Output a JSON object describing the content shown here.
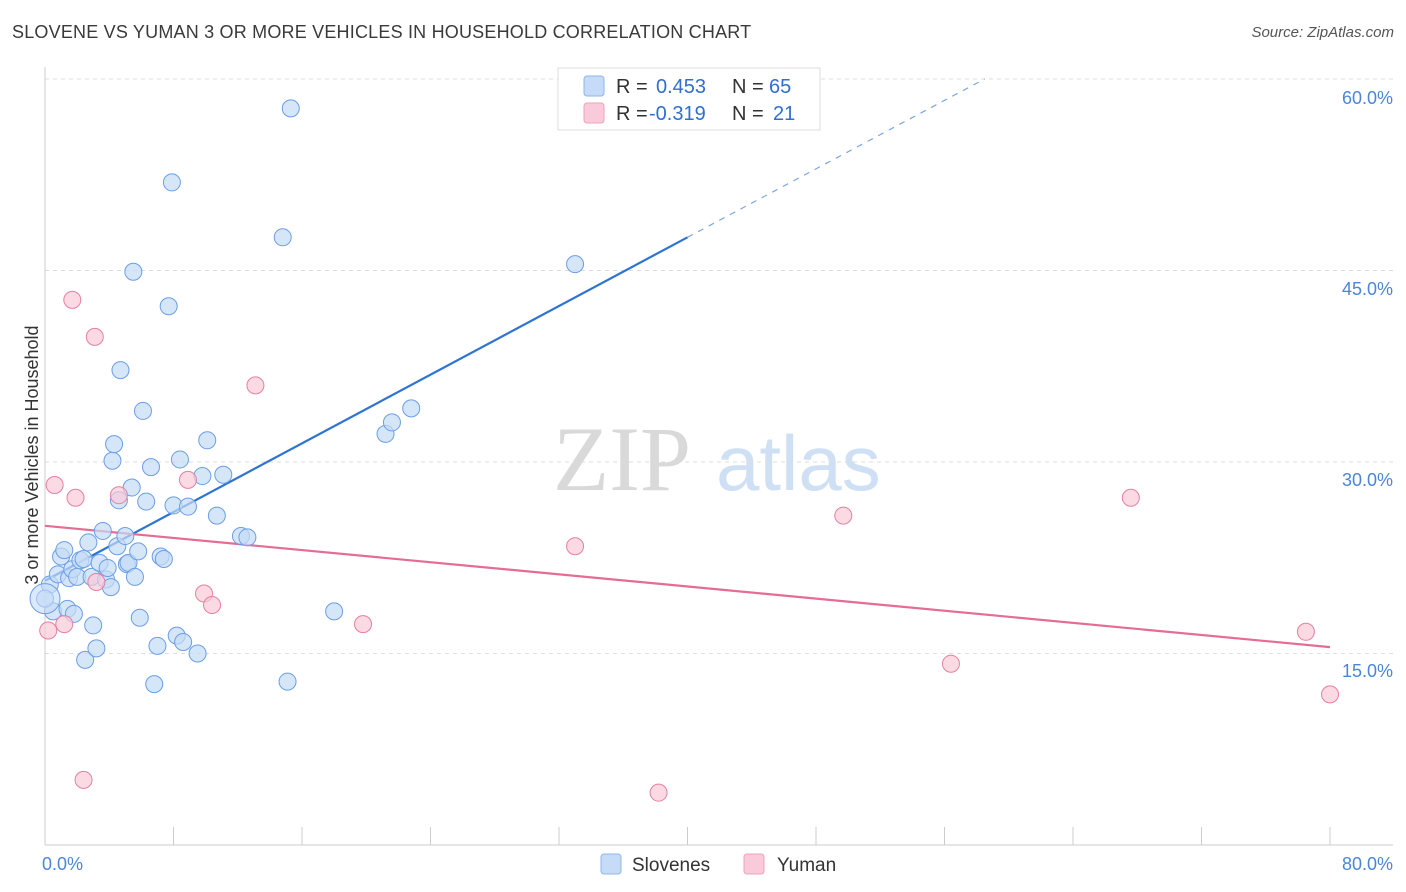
{
  "title": "SLOVENE VS YUMAN 3 OR MORE VEHICLES IN HOUSEHOLD CORRELATION CHART",
  "source": "Source: ZipAtlas.com",
  "watermark": {
    "zip": "ZIP",
    "atlas": "atlas"
  },
  "legend": [
    {
      "r_label": "R =",
      "r_value": "0.453",
      "n_label": "N =",
      "n_value": "65",
      "color": "#a9c8f3"
    },
    {
      "r_label": "R =",
      "r_value": "-0.319",
      "n_label": "N =",
      "n_value": "21",
      "color": "#f6b8cb"
    }
  ],
  "bottom_legend": [
    "Slovenes",
    "Yuman"
  ],
  "chart_data": {
    "type": "scatter",
    "title": "SLOVENE VS YUMAN 3 OR MORE VEHICLES IN HOUSEHOLD CORRELATION CHART",
    "xlabel": "",
    "ylabel": "3 or more Vehicles in Household",
    "xlim": [
      0,
      80
    ],
    "ylim": [
      0,
      60
    ],
    "x_tick_labels": [
      "0.0%",
      "80.0%"
    ],
    "y_tick_labels": [
      "15.0%",
      "30.0%",
      "45.0%",
      "60.0%"
    ],
    "y_ticks": [
      15,
      30,
      45,
      60
    ],
    "grid": "horizontal dashed",
    "series": [
      {
        "name": "Slovenes",
        "color": "#6a9ee6",
        "fill": "#c5dbf7",
        "r": 0.453,
        "n": 65,
        "trend": {
          "x0": 0,
          "y0": 20.7,
          "x1": 40,
          "y1": 47.6,
          "dash_x_end": 58.5,
          "dash_y_end": 60.0
        },
        "points": [
          [
            0.3,
            20.4
          ],
          [
            0.5,
            18.3
          ],
          [
            0.8,
            21.2
          ],
          [
            1.0,
            22.6
          ],
          [
            1.2,
            23.1
          ],
          [
            1.4,
            18.5
          ],
          [
            1.5,
            20.9
          ],
          [
            1.7,
            21.6
          ],
          [
            1.8,
            18.1
          ],
          [
            2.0,
            21.0
          ],
          [
            2.2,
            22.3
          ],
          [
            2.4,
            22.4
          ],
          [
            2.5,
            14.5
          ],
          [
            2.7,
            23.7
          ],
          [
            2.9,
            21.0
          ],
          [
            3.0,
            17.2
          ],
          [
            3.2,
            15.4
          ],
          [
            3.4,
            22.1
          ],
          [
            3.6,
            24.6
          ],
          [
            3.8,
            20.8
          ],
          [
            3.9,
            21.7
          ],
          [
            4.1,
            20.2
          ],
          [
            4.2,
            30.1
          ],
          [
            4.3,
            31.4
          ],
          [
            4.5,
            23.4
          ],
          [
            4.6,
            27.0
          ],
          [
            4.7,
            37.2
          ],
          [
            5.0,
            24.2
          ],
          [
            5.1,
            22.0
          ],
          [
            5.2,
            22.1
          ],
          [
            5.4,
            28.0
          ],
          [
            5.5,
            44.9
          ],
          [
            5.6,
            21.0
          ],
          [
            5.8,
            23.0
          ],
          [
            5.9,
            17.8
          ],
          [
            6.1,
            34.0
          ],
          [
            6.3,
            26.9
          ],
          [
            6.6,
            29.6
          ],
          [
            6.8,
            12.6
          ],
          [
            7.0,
            15.6
          ],
          [
            7.2,
            22.6
          ],
          [
            7.4,
            22.4
          ],
          [
            7.7,
            42.2
          ],
          [
            7.9,
            51.9
          ],
          [
            8.0,
            26.6
          ],
          [
            8.2,
            16.4
          ],
          [
            8.4,
            30.2
          ],
          [
            8.6,
            15.9
          ],
          [
            8.9,
            26.5
          ],
          [
            9.5,
            15.0
          ],
          [
            9.8,
            28.9
          ],
          [
            10.1,
            31.7
          ],
          [
            10.7,
            25.8
          ],
          [
            11.1,
            29.0
          ],
          [
            12.2,
            24.2
          ],
          [
            12.6,
            24.1
          ],
          [
            14.8,
            47.6
          ],
          [
            15.1,
            12.8
          ],
          [
            15.3,
            57.7
          ],
          [
            18.0,
            18.3
          ],
          [
            21.2,
            32.2
          ],
          [
            21.6,
            33.1
          ],
          [
            22.8,
            34.2
          ],
          [
            33.0,
            45.5
          ],
          [
            0.0,
            19.3
          ]
        ]
      },
      {
        "name": "Yuman",
        "color": "#e77fa2",
        "fill": "#f9cad9",
        "r": -0.319,
        "n": 21,
        "trend": {
          "x0": 0,
          "y0": 25.0,
          "x1": 80,
          "y1": 15.5
        },
        "points": [
          [
            0.2,
            16.8
          ],
          [
            0.6,
            28.2
          ],
          [
            1.2,
            17.3
          ],
          [
            1.7,
            42.7
          ],
          [
            1.9,
            27.2
          ],
          [
            2.4,
            5.1
          ],
          [
            3.1,
            39.8
          ],
          [
            3.2,
            20.6
          ],
          [
            4.6,
            27.4
          ],
          [
            8.9,
            28.6
          ],
          [
            9.9,
            19.7
          ],
          [
            10.4,
            18.8
          ],
          [
            13.1,
            36.0
          ],
          [
            19.8,
            17.3
          ],
          [
            33.0,
            23.4
          ],
          [
            38.2,
            4.1
          ],
          [
            49.7,
            25.8
          ],
          [
            56.4,
            14.2
          ],
          [
            67.6,
            27.2
          ],
          [
            78.5,
            16.7
          ],
          [
            80.0,
            11.8
          ]
        ]
      }
    ]
  }
}
